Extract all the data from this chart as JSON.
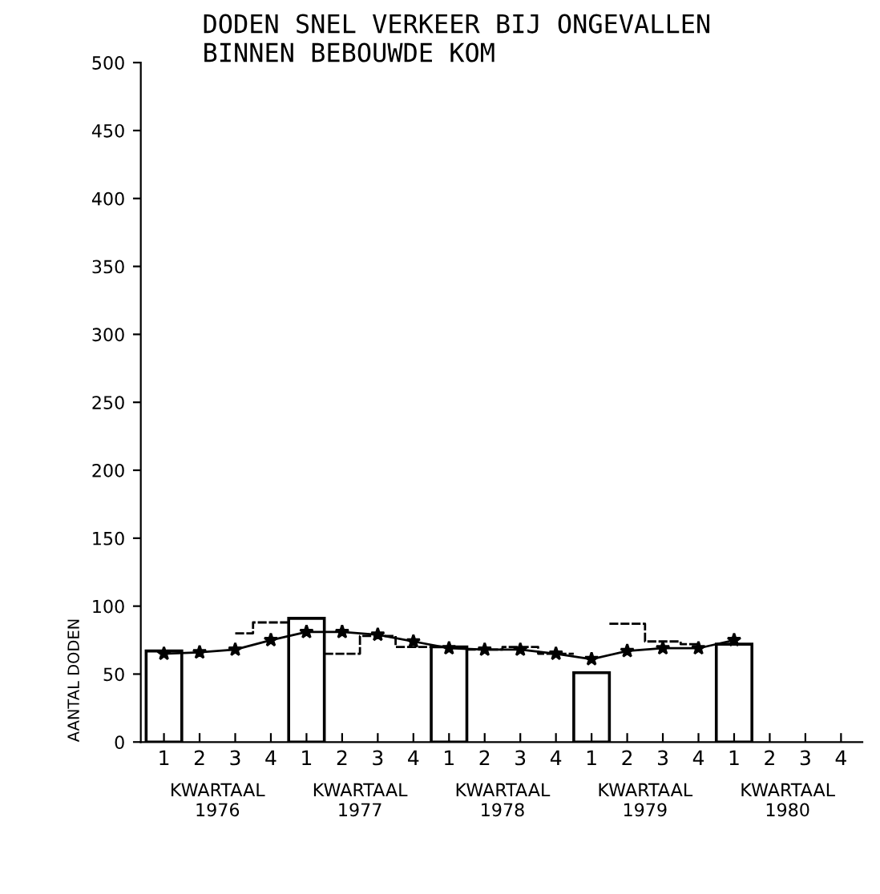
{
  "chart_data": {
    "type": "bar",
    "title": "DODEN SNEL VERKEER BIJ ONGEVALLEN\nBINNEN BEBOUWDE KOM",
    "ylabel": "AANTAL DODEN",
    "categories": [
      "1",
      "2",
      "3",
      "4",
      "1",
      "2",
      "3",
      "4",
      "1",
      "2",
      "3",
      "4",
      "1",
      "2",
      "3",
      "4",
      "1",
      "2",
      "3",
      "4"
    ],
    "series": [
      {
        "color": "#000000",
        "values": [
          67,
          null,
          null,
          null,
          91,
          null,
          null,
          null,
          70,
          null,
          null,
          null,
          51,
          null,
          null,
          null,
          72,
          null,
          null,
          null
        ]
      },
      {
        "type": "step",
        "color": "#000000",
        "line_style": "dashed",
        "values": [
          null,
          null,
          80,
          88,
          null,
          65,
          78,
          70,
          null,
          68,
          70,
          65,
          null,
          87,
          74,
          72,
          null,
          null,
          null,
          null
        ]
      },
      {
        "type": "line",
        "color": "#000000",
        "marker": "star",
        "values": [
          65,
          66,
          68,
          75,
          81,
          81,
          79,
          74,
          69,
          68,
          68,
          65,
          61,
          67,
          69,
          69,
          75,
          null,
          null,
          null
        ]
      }
    ],
    "ylim": [
      0,
      500
    ],
    "yticks": [
      0,
      50,
      100,
      150,
      200,
      250,
      300,
      350,
      400,
      450,
      500
    ],
    "annotations": [
      "KWARTAAL\n1976",
      "KWARTAAL\n1977",
      "KWARTAAL\n1978",
      "KWARTAAL\n1979",
      "KWARTAAL\n1980"
    ],
    "grid": false,
    "legend": false
  }
}
